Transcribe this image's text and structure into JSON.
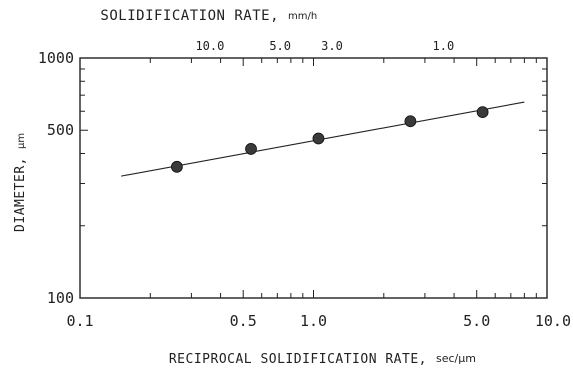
{
  "chart_data": {
    "type": "scatter",
    "x_scale": "log",
    "y_scale": "log",
    "xlabel": "RECIPROCAL SOLIDIFICATION RATE,",
    "xlabel_unit": "sec/μm",
    "ylabel": "DIAMETER,",
    "ylabel_unit": "μm",
    "top_label": "SOLIDIFICATION RATE,",
    "top_label_unit": "mm/h",
    "xlim": [
      0.1,
      10.0
    ],
    "ylim": [
      100,
      1000
    ],
    "x_ticks": [
      {
        "value": 0.1,
        "label": "0.1"
      },
      {
        "value": 0.5,
        "label": "0.5"
      },
      {
        "value": 1.0,
        "label": "1.0"
      },
      {
        "value": 5.0,
        "label": "5.0"
      },
      {
        "value": 10.0,
        "label": "10.0"
      }
    ],
    "y_ticks": [
      {
        "value": 100,
        "label": "100"
      },
      {
        "value": 500,
        "label": "500"
      },
      {
        "value": 1000,
        "label": "1000"
      }
    ],
    "top_ticks": [
      {
        "rate": 10.0,
        "label": "10.0"
      },
      {
        "rate": 5.0,
        "label": "5.0"
      },
      {
        "rate": 3.0,
        "label": "3.0"
      },
      {
        "rate": 1.0,
        "label": "1.0"
      }
    ],
    "points": [
      {
        "x": 0.26,
        "y": 352
      },
      {
        "x": 0.54,
        "y": 418
      },
      {
        "x": 1.05,
        "y": 462
      },
      {
        "x": 2.6,
        "y": 545
      },
      {
        "x": 5.3,
        "y": 595
      }
    ],
    "fit_line": {
      "x": [
        0.15,
        8.0
      ],
      "y": [
        322,
        655
      ]
    },
    "grid": false,
    "colors": {
      "ink": "#222222",
      "marker": "#3a3a3a"
    }
  }
}
